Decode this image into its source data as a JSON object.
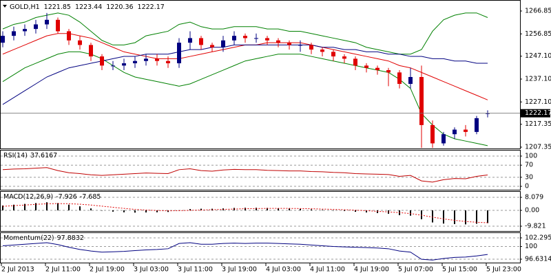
{
  "chart_data": [
    {
      "type": "candlestick",
      "title": "GOLD,H1",
      "categories": [
        "2 Jul 2013",
        null,
        null,
        null,
        "2 Jul 11:00",
        null,
        null,
        null,
        "2 Jul 19:00",
        null,
        null,
        null,
        "3 Jul 03:00",
        null,
        null,
        null,
        "3 Jul 11:00",
        null,
        null,
        null,
        "3 Jul 19:00",
        null,
        null,
        null,
        "4 Jul 03:00",
        null,
        null,
        null,
        "4 Jul 11:00",
        null,
        null,
        null,
        "4 Jul 19:00",
        null,
        null,
        null,
        "5 Jul 07:00",
        null,
        null,
        null,
        "5 Jul 15:00",
        null,
        null,
        null,
        "5 Jul 23:00"
      ],
      "open": [
        1253,
        1256,
        1258,
        1259,
        1261,
        1263,
        1258,
        1254,
        1252,
        1247,
        1243,
        1243,
        1244,
        1245,
        1246,
        1245,
        1244,
        1253,
        1255,
        1252,
        1251,
        1254,
        1256,
        1255,
        1255,
        1254,
        1253,
        1252,
        1252,
        1250,
        1249,
        1247,
        1246,
        1243,
        1242,
        1241,
        1240,
        1235,
        1238,
        1217,
        1209,
        1213,
        1215,
        1214,
        1221.85
      ],
      "high": [
        1258,
        1260,
        1261,
        1263,
        1266,
        1264,
        1259,
        1256,
        1253,
        1248,
        1245,
        1246,
        1247,
        1248,
        1248,
        1247,
        1255,
        1258,
        1256,
        1253,
        1256,
        1258,
        1257,
        1257,
        1256,
        1255,
        1254,
        1254,
        1253,
        1251,
        1250,
        1248,
        1247,
        1244,
        1243,
        1242,
        1241,
        1242,
        1243,
        1219,
        1214,
        1216,
        1217,
        1221,
        1223.44
      ],
      "low": [
        1251,
        1254,
        1256,
        1257,
        1259,
        1257,
        1252,
        1250,
        1245,
        1241,
        1241,
        1241,
        1242,
        1243,
        1243,
        1242,
        1242,
        1250,
        1250,
        1249,
        1249,
        1252,
        1253,
        1253,
        1252,
        1251,
        1250,
        1249,
        1248,
        1247,
        1245,
        1244,
        1241,
        1240,
        1239,
        1234,
        1233,
        1233,
        1207,
        1207,
        1208,
        1211,
        1212,
        1213,
        1220.36
      ],
      "close": [
        1256,
        1258,
        1259,
        1261,
        1263,
        1258,
        1254,
        1252,
        1247,
        1243,
        1243,
        1244,
        1245,
        1246,
        1245,
        1244,
        1253,
        1255,
        1252,
        1251,
        1254,
        1256,
        1255,
        1255,
        1254,
        1253,
        1252,
        1252,
        1250,
        1249,
        1247,
        1246,
        1243,
        1242,
        1241,
        1240,
        1235,
        1238,
        1217,
        1209,
        1213,
        1215,
        1214,
        1220,
        1222.17
      ],
      "up_color": "#000080",
      "down_color": "#e00000",
      "overlays": [
        {
          "color": "#008000",
          "values": [
            1259,
            1261,
            1262,
            1264,
            1265,
            1266,
            1265,
            1262,
            1258,
            1254,
            1252,
            1252,
            1253,
            1256,
            1257,
            1258,
            1261,
            1262,
            1260,
            1259,
            1259,
            1260,
            1260,
            1260,
            1259,
            1259,
            1258,
            1258,
            1257,
            1256,
            1255,
            1254,
            1253,
            1251,
            1250,
            1249,
            1248,
            1248,
            1250,
            1258,
            1263,
            1265,
            1266,
            1266,
            1264
          ]
        },
        {
          "color": "#e00000",
          "values": [
            1248,
            1250,
            1252,
            1254,
            1256,
            1257,
            1257,
            1256,
            1255,
            1253,
            1251,
            1249,
            1248,
            1247,
            1246,
            1246,
            1246,
            1247,
            1248,
            1249,
            1250,
            1251,
            1252,
            1252,
            1253,
            1253,
            1253,
            1253,
            1252,
            1251,
            1250,
            1249,
            1248,
            1247,
            1246,
            1245,
            1243,
            1242,
            1240,
            1238,
            1236,
            1234,
            1232,
            1230,
            1228
          ]
        },
        {
          "color": "#008000",
          "values": [
            1236,
            1239,
            1242,
            1244,
            1246,
            1248,
            1249,
            1249,
            1248,
            1246,
            1243,
            1240,
            1238,
            1237,
            1236,
            1235,
            1234,
            1235,
            1237,
            1239,
            1241,
            1243,
            1245,
            1246,
            1247,
            1248,
            1248,
            1248,
            1247,
            1246,
            1245,
            1244,
            1243,
            1242,
            1241,
            1240,
            1237,
            1233,
            1222,
            1217,
            1213,
            1211,
            1210,
            1209,
            1208
          ]
        },
        {
          "color": "#000080",
          "values": [
            1226,
            1229,
            1232,
            1235,
            1238,
            1240,
            1242,
            1243,
            1244,
            1245,
            1246,
            1247,
            1247,
            1248,
            1248,
            1248,
            1249,
            1250,
            1250,
            1251,
            1251,
            1252,
            1252,
            1252,
            1252,
            1252,
            1252,
            1252,
            1252,
            1251,
            1251,
            1250,
            1250,
            1249,
            1249,
            1248,
            1248,
            1247,
            1247,
            1246,
            1246,
            1245,
            1245,
            1244,
            1244
          ]
        }
      ],
      "ylim": [
        1206.45,
        1271.36
      ],
      "yticks": [
        1266.85,
        1256.85,
        {
          "value": 1247.1,
          "label": "1247.10"
        },
        {
          "value": 1237.1,
          "label": "1237.10"
        },
        {
          "value": 1227.1,
          "label": "1227.10"
        },
        1217.35,
        1207.35
      ]
    },
    {
      "type": "line",
      "title": "RSI(14)",
      "color": "#c00000",
      "values": [
        55,
        57,
        58,
        60,
        62,
        52,
        45,
        42,
        38,
        36,
        38,
        40,
        42,
        44,
        43,
        42,
        55,
        58,
        52,
        50,
        54,
        56,
        55,
        55,
        53,
        52,
        51,
        51,
        49,
        48,
        46,
        45,
        42,
        41,
        40,
        39,
        33,
        36,
        18,
        14,
        22,
        26,
        25,
        33,
        37.6167
      ],
      "ylim": [
        -13.6,
        118.2
      ],
      "yticks": [
        100,
        70,
        30,
        0
      ]
    },
    {
      "type": "macd",
      "title": "MACD(12,26,9)",
      "color": "#000000",
      "signal_color": "#e00000",
      "values": [
        3,
        3.5,
        4,
        4.5,
        5,
        4.5,
        3.5,
        2.5,
        1.2,
        0,
        -0.8,
        -1.2,
        -1.4,
        -1.3,
        -1.2,
        -1,
        0,
        0.8,
        1,
        1,
        1.2,
        1.5,
        1.6,
        1.6,
        1.5,
        1.3,
        1.1,
        0.9,
        0.6,
        0.3,
        0,
        -0.4,
        -0.9,
        -1.3,
        -1.7,
        -2.1,
        -3,
        -3.3,
        -5.5,
        -7.5,
        -8.2,
        -8.5,
        -8.7,
        -8.3,
        -7.926
      ],
      "signal": [
        2.5,
        2.9,
        3.3,
        3.7,
        4.1,
        4.2,
        4.1,
        3.8,
        3.3,
        2.6,
        1.9,
        1.2,
        0.6,
        0.2,
        -0.1,
        -0.3,
        -0.2,
        0,
        0.2,
        0.4,
        0.6,
        0.8,
        1,
        1.1,
        1.2,
        1.2,
        1.2,
        1.1,
        1,
        0.8,
        0.6,
        0.4,
        0.1,
        -0.2,
        -0.6,
        -1,
        -1.4,
        -2,
        -3,
        -4.2,
        -5.3,
        -6.2,
        -6.9,
        -7.4,
        -7.685
      ],
      "ylim": [
        -13.23,
        11.49
      ],
      "yticks": [
        8.079,
        {
          "value": 0,
          "label": "0.00"
        },
        -9.821
      ]
    },
    {
      "type": "line",
      "title": "Momentum(22)",
      "color": "#000080",
      "values": [
        100.2,
        100.4,
        100.6,
        100.8,
        101,
        100.5,
        99.8,
        99.2,
        98.8,
        98.5,
        98.6,
        98.7,
        98.9,
        99.1,
        99.2,
        99.4,
        100.8,
        101,
        100.6,
        100.6,
        100.8,
        100.9,
        100.8,
        100.9,
        100.9,
        100.8,
        100.7,
        100.6,
        100.4,
        100.2,
        100,
        99.9,
        99.8,
        99.7,
        99.6,
        99.4,
        98.8,
        98.5,
        96.6,
        96.4,
        96.8,
        97.1,
        97.2,
        97.5,
        97.8832
      ],
      "ylim": [
        95.53,
        103.57
      ],
      "yticks": [
        102.2952,
        100,
        96.6314
      ]
    }
  ]
}
